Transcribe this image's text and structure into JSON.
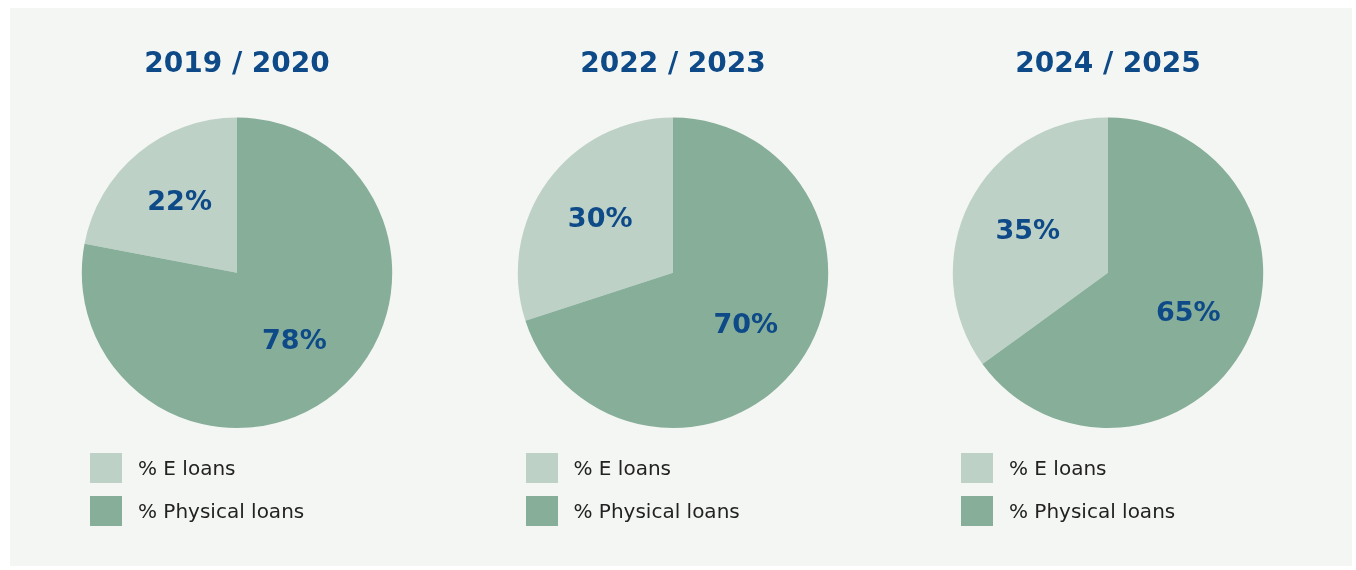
{
  "chart_data": [
    {
      "type": "pie",
      "title": "2019 / 2020",
      "categories": [
        "% E loans",
        "% Physical loans"
      ],
      "values": [
        22,
        78
      ],
      "colors": [
        "#bdd1c6",
        "#86ae99"
      ],
      "value_labels": [
        "22%",
        "78%"
      ],
      "legend": "bottom left"
    },
    {
      "type": "pie",
      "title": "2022 / 2023",
      "categories": [
        "% E loans",
        "% Physical loans"
      ],
      "values": [
        30,
        70
      ],
      "colors": [
        "#bdd1c6",
        "#86ae99"
      ],
      "value_labels": [
        "30%",
        "70%"
      ],
      "legend": "bottom left"
    },
    {
      "type": "pie",
      "title": "2024 / 2025",
      "categories": [
        "% E loans",
        "% Physical loans"
      ],
      "values": [
        35,
        65
      ],
      "colors": [
        "#bdd1c6",
        "#86ae99"
      ],
      "value_labels": [
        "35%",
        "65%"
      ],
      "legend": "bottom left"
    }
  ]
}
